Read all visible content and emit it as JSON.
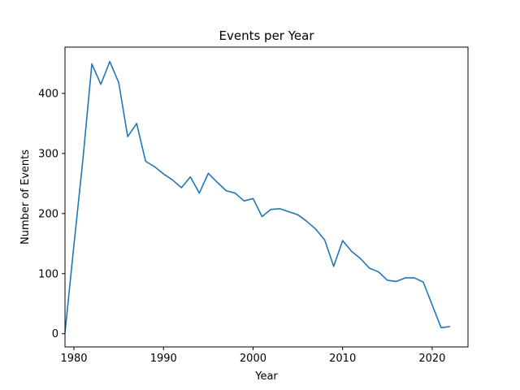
{
  "chart_data": {
    "type": "line",
    "title": "Events per Year",
    "xlabel": "Year",
    "ylabel": "Number of Events",
    "xlim": [
      1979,
      2024
    ],
    "ylim": [
      -22,
      477
    ],
    "xticks": [
      1980,
      1990,
      2000,
      2010,
      2020
    ],
    "yticks": [
      0,
      100,
      200,
      300,
      400
    ],
    "grid": false,
    "line_color": "#1f77b4",
    "series": [
      {
        "x": [
          1979,
          1980,
          1981,
          1982,
          1983,
          1984,
          1985,
          1986,
          1987,
          1988,
          1989,
          1990,
          1991,
          1992,
          1993,
          1994,
          1995,
          1996,
          1997,
          1998,
          1999,
          2000,
          2001,
          2002,
          2003,
          2004,
          2005,
          2006,
          2007,
          2008,
          2009,
          2010,
          2011,
          2012,
          2013,
          2014,
          2015,
          2016,
          2017,
          2018,
          2019,
          2020,
          2021,
          2022
        ],
        "y": [
          2,
          148,
          290,
          449,
          415,
          453,
          418,
          328,
          350,
          287,
          278,
          266,
          256,
          243,
          261,
          234,
          267,
          252,
          238,
          234,
          221,
          225,
          195,
          207,
          208,
          203,
          198,
          187,
          174,
          156,
          112,
          155,
          137,
          125,
          109,
          103,
          89,
          87,
          93,
          93,
          86,
          48,
          10,
          12
        ]
      }
    ]
  }
}
